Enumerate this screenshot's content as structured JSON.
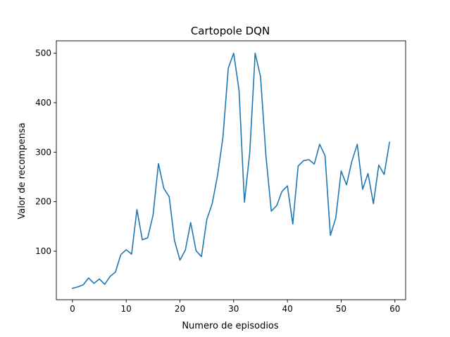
{
  "chart_data": {
    "type": "line",
    "title": "Cartopole DQN",
    "xlabel": "Numero de episodios",
    "ylabel": "Valor de recompensa",
    "xlim": [
      -3,
      62
    ],
    "ylim": [
      2,
      525
    ],
    "xticks": [
      0,
      10,
      20,
      30,
      40,
      50,
      60
    ],
    "yticks": [
      100,
      200,
      300,
      400,
      500
    ],
    "grid": false,
    "legend": "none",
    "series": [
      {
        "color": "#1f77b4",
        "x": [
          0,
          1,
          2,
          3,
          4,
          5,
          6,
          7,
          8,
          9,
          10,
          11,
          12,
          13,
          14,
          15,
          16,
          17,
          18,
          19,
          20,
          21,
          22,
          23,
          24,
          25,
          26,
          27,
          28,
          29,
          30,
          31,
          32,
          33,
          34,
          35,
          36,
          37,
          38,
          39,
          40,
          41,
          42,
          43,
          44,
          45,
          46,
          47,
          48,
          49,
          50,
          51,
          52,
          53,
          54,
          55,
          56,
          57,
          58,
          59
        ],
        "values": [
          25,
          28,
          32,
          46,
          35,
          44,
          33,
          49,
          58,
          93,
          103,
          94,
          184,
          123,
          127,
          173,
          277,
          227,
          210,
          121,
          82,
          102,
          158,
          101,
          89,
          164,
          196,
          253,
          330,
          470,
          500,
          425,
          199,
          300,
          500,
          452,
          293,
          181,
          192,
          221,
          232,
          155,
          272,
          283,
          285,
          276,
          316,
          293,
          132,
          167,
          262,
          234,
          282,
          316,
          225,
          257,
          196,
          274,
          255,
          320
        ]
      }
    ]
  }
}
